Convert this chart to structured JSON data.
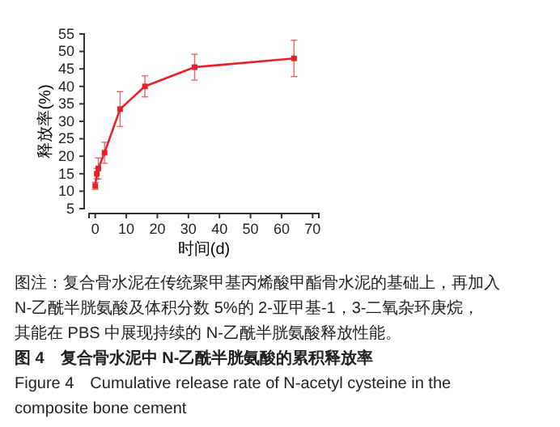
{
  "chart_data": {
    "type": "line",
    "xlabel": "时间(d)",
    "ylabel": "释放率(%)",
    "x": [
      0,
      0.5,
      1,
      3,
      8,
      16,
      32,
      64
    ],
    "series": [
      {
        "color": "#e8202a",
        "values": [
          11.5,
          15,
          16.5,
          21,
          33.5,
          40,
          45.5,
          48
        ],
        "errors": [
          1,
          1.5,
          3,
          3,
          5,
          3,
          3.7,
          5.2
        ]
      }
    ],
    "xlim": [
      -2,
      72
    ],
    "xticks": [
      0,
      10,
      20,
      30,
      40,
      50,
      60,
      70
    ],
    "ylim": [
      5,
      55
    ],
    "yticks": [
      5,
      10,
      15,
      20,
      25,
      30,
      35,
      40,
      45,
      50,
      55
    ],
    "marker": "square",
    "grid": false,
    "annotations": [
      "图注：复合骨水泥在传统聚甲基丙烯酸甲酯骨水泥的基础上，再加入",
      "N-乙酰半胱氨酸及体积分数 5%的 2-亚甲基-1，3-二氧杂环庚烷，",
      "其能在 PBS 中展现持续的 N-乙酰半胱氨酸释放性能。",
      "图 4　复合骨水泥中 N-乙酰半胱氨酸的累积释放率",
      "Figure 4　Cumulative release rate of N-acetyl cysteine in the",
      "composite bone cement"
    ]
  }
}
